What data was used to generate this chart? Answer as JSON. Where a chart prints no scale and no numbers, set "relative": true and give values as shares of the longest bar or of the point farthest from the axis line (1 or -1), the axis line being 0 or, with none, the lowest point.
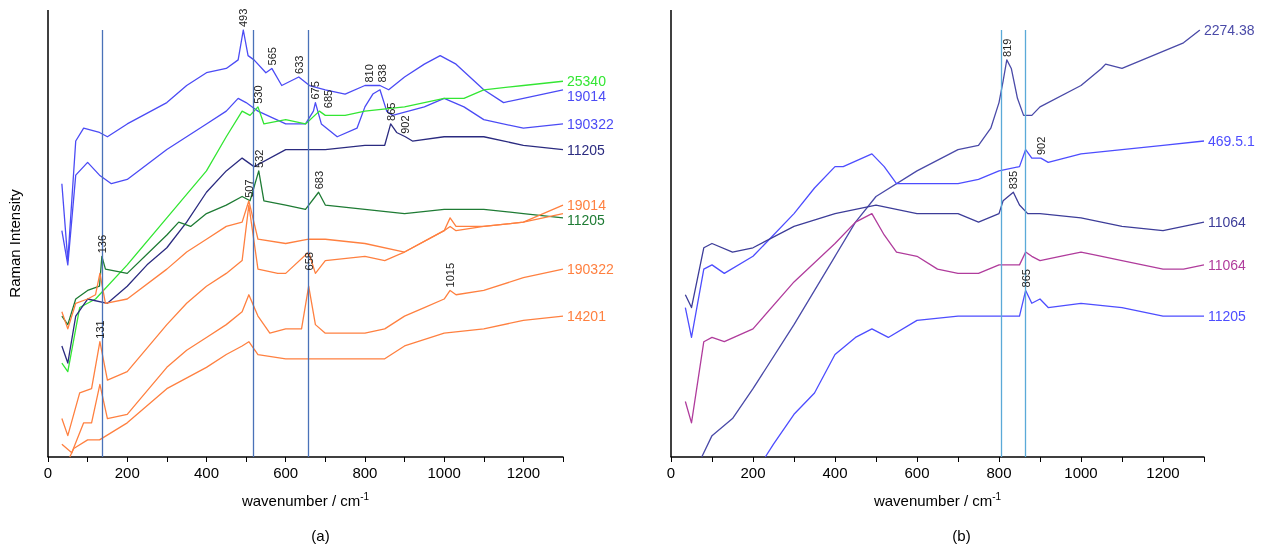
{
  "chart_data": [
    {
      "type": "line",
      "relative": true,
      "title": "(a)",
      "xlabel": "wavenumber / cm$^{-1}$",
      "ylabel": "Raman Intensity",
      "xlim": [
        0,
        1300
      ],
      "xticks": [
        0,
        {
          "value": 100,
          "label": null
        },
        200,
        {
          "value": 300,
          "label": null
        },
        400,
        {
          "value": 500,
          "label": null
        },
        600,
        {
          "value": 700,
          "label": null
        },
        800,
        {
          "value": 900,
          "label": null
        },
        1000,
        {
          "value": 1100,
          "label": null
        },
        1200,
        {
          "value": 1300,
          "label": null
        }
      ],
      "series": [
        {
          "name": "19014",
          "color": "#4b4bf5",
          "x": [
            35,
            50,
            70,
            90,
            130,
            150,
            200,
            300,
            350,
            400,
            450,
            480,
            493,
            505,
            520,
            550,
            565,
            590,
            633,
            660,
            700,
            750,
            800,
            838,
            860,
            900,
            950,
            990,
            1030,
            1100,
            1150,
            1200,
            1250,
            1300
          ],
          "values": [
            0.64,
            0.46,
            0.74,
            0.77,
            0.76,
            0.75,
            0.78,
            0.83,
            0.87,
            0.9,
            0.91,
            0.93,
            1.0,
            0.94,
            0.93,
            0.9,
            0.91,
            0.87,
            0.89,
            0.87,
            0.86,
            0.85,
            0.87,
            0.87,
            0.86,
            0.89,
            0.92,
            0.94,
            0.92,
            0.86,
            0.83,
            0.84,
            0.85,
            0.86
          ]
        },
        {
          "name": "190322",
          "color": "#4b4bf5",
          "x": [
            35,
            50,
            70,
            100,
            130,
            160,
            200,
            300,
            400,
            450,
            480,
            500,
            530,
            600,
            650,
            670,
            675,
            690,
            730,
            780,
            800,
            820,
            838,
            855,
            870,
            950,
            1000,
            1050,
            1100,
            1200,
            1300
          ],
          "values": [
            0.53,
            0.45,
            0.66,
            0.69,
            0.66,
            0.64,
            0.65,
            0.72,
            0.78,
            0.81,
            0.84,
            0.83,
            0.81,
            0.78,
            0.78,
            0.81,
            0.83,
            0.78,
            0.75,
            0.77,
            0.82,
            0.85,
            0.86,
            0.81,
            0.8,
            0.82,
            0.84,
            0.82,
            0.79,
            0.77,
            0.78
          ]
        },
        {
          "name": "25340",
          "color": "#33e633",
          "x": [
            35,
            50,
            80,
            120,
            200,
            300,
            400,
            450,
            490,
            510,
            530,
            545,
            600,
            650,
            685,
            700,
            750,
            800,
            900,
            1000,
            1050,
            1100,
            1200,
            1300
          ],
          "values": [
            0.22,
            0.2,
            0.35,
            0.37,
            0.45,
            0.56,
            0.67,
            0.75,
            0.81,
            0.8,
            0.82,
            0.78,
            0.79,
            0.78,
            0.81,
            0.8,
            0.8,
            0.81,
            0.82,
            0.84,
            0.84,
            0.86,
            0.87,
            0.88
          ]
        },
        {
          "name": "11205",
          "color": "#2b2b80",
          "x": [
            35,
            50,
            70,
            100,
            150,
            200,
            250,
            300,
            350,
            400,
            450,
            490,
            520,
            600,
            700,
            800,
            850,
            865,
            880,
            902,
            920,
            1000,
            1100,
            1200,
            1300
          ],
          "values": [
            0.26,
            0.22,
            0.33,
            0.37,
            0.36,
            0.4,
            0.45,
            0.49,
            0.55,
            0.62,
            0.67,
            0.7,
            0.68,
            0.72,
            0.72,
            0.73,
            0.73,
            0.78,
            0.76,
            0.75,
            0.74,
            0.75,
            0.75,
            0.73,
            0.72
          ]
        },
        {
          "name": "11205",
          "color": "#1e7b34",
          "x": [
            35,
            50,
            70,
            100,
            130,
            136,
            145,
            200,
            300,
            330,
            360,
            400,
            450,
            490,
            510,
            532,
            545,
            600,
            650,
            683,
            700,
            800,
            900,
            1000,
            1100,
            1200,
            1300
          ],
          "values": [
            0.33,
            0.31,
            0.37,
            0.39,
            0.4,
            0.47,
            0.44,
            0.43,
            0.52,
            0.55,
            0.54,
            0.57,
            0.59,
            0.61,
            0.6,
            0.67,
            0.6,
            0.59,
            0.58,
            0.62,
            0.59,
            0.58,
            0.57,
            0.58,
            0.58,
            0.57,
            0.56
          ]
        },
        {
          "name": "19014",
          "color": "#ff8040",
          "x": [
            35,
            50,
            70,
            100,
            120,
            131,
            145,
            200,
            300,
            350,
            400,
            450,
            490,
            507,
            530,
            600,
            658,
            700,
            800,
            900,
            1000,
            1015,
            1030,
            1100,
            1200,
            1300
          ],
          "values": [
            0.34,
            0.3,
            0.36,
            0.37,
            0.38,
            0.43,
            0.36,
            0.37,
            0.44,
            0.48,
            0.51,
            0.54,
            0.55,
            0.6,
            0.51,
            0.5,
            0.51,
            0.51,
            0.5,
            0.48,
            0.53,
            0.56,
            0.54,
            0.54,
            0.55,
            0.59
          ]
        },
        {
          "color": "#ff8040",
          "x": [
            35,
            50,
            80,
            110,
            131,
            150,
            200,
            300,
            350,
            400,
            450,
            490,
            507,
            530,
            580,
            600,
            658,
            675,
            700,
            800,
            850,
            900,
            1000,
            1015,
            1030,
            1100,
            1200,
            1300
          ],
          "values": [
            0.09,
            0.05,
            0.15,
            0.16,
            0.27,
            0.18,
            0.2,
            0.31,
            0.36,
            0.4,
            0.43,
            0.46,
            0.59,
            0.44,
            0.43,
            0.43,
            0.48,
            0.43,
            0.46,
            0.47,
            0.46,
            0.48,
            0.53,
            0.54,
            0.53,
            0.54,
            0.55,
            0.57
          ]
        },
        {
          "name": "190322",
          "color": "#ff8040",
          "x": [
            35,
            60,
            90,
            110,
            131,
            150,
            200,
            300,
            350,
            400,
            450,
            490,
            507,
            530,
            560,
            600,
            640,
            658,
            675,
            700,
            800,
            850,
            900,
            950,
            1000,
            1015,
            1030,
            1100,
            1200,
            1300
          ],
          "values": [
            0.03,
            0.01,
            0.08,
            0.08,
            0.17,
            0.09,
            0.1,
            0.21,
            0.25,
            0.28,
            0.31,
            0.34,
            0.38,
            0.33,
            0.29,
            0.3,
            0.3,
            0.4,
            0.31,
            0.29,
            0.29,
            0.3,
            0.33,
            0.35,
            0.37,
            0.39,
            0.38,
            0.39,
            0.42,
            0.44
          ]
        },
        {
          "name": "14201",
          "color": "#ff8040",
          "x": [
            55,
            65,
            100,
            130,
            200,
            300,
            400,
            450,
            490,
            507,
            530,
            600,
            700,
            800,
            850,
            900,
            1000,
            1100,
            1200,
            1300
          ],
          "values": [
            0.0,
            0.02,
            0.04,
            0.04,
            0.08,
            0.16,
            0.21,
            0.24,
            0.26,
            0.27,
            0.24,
            0.23,
            0.23,
            0.23,
            0.23,
            0.26,
            0.29,
            0.3,
            0.32,
            0.33
          ]
        }
      ],
      "ref_lines": [
        {
          "axis": "x",
          "value": 136,
          "color": "#4a72b8"
        },
        {
          "axis": "x",
          "value": 518,
          "color": "#4a72b8"
        },
        {
          "axis": "x",
          "value": 658,
          "color": "#4a72b8"
        }
      ],
      "annotations": [
        {
          "text": "131",
          "x": 131,
          "y": 0.27
        },
        {
          "text": "136",
          "x": 136,
          "y": 0.47
        },
        {
          "text": "493",
          "x": 493,
          "y": 1.0
        },
        {
          "text": "565",
          "x": 565,
          "y": 0.91
        },
        {
          "text": "633",
          "x": 633,
          "y": 0.89
        },
        {
          "text": "675",
          "x": 675,
          "y": 0.83
        },
        {
          "text": "810",
          "x": 810,
          "y": 0.87
        },
        {
          "text": "838",
          "x": 838,
          "y": 0.87
        },
        {
          "text": "530",
          "x": 530,
          "y": 0.82
        },
        {
          "text": "685",
          "x": 685,
          "y": 0.81
        },
        {
          "text": "532",
          "x": 532,
          "y": 0.67
        },
        {
          "text": "683",
          "x": 683,
          "y": 0.62
        },
        {
          "text": "865",
          "x": 865,
          "y": 0.78
        },
        {
          "text": "902",
          "x": 902,
          "y": 0.75
        },
        {
          "text": "507",
          "x": 507,
          "y": 0.6
        },
        {
          "text": "658",
          "x": 658,
          "y": 0.43
        },
        {
          "text": "1015",
          "x": 1015,
          "y": 0.39
        }
      ]
    },
    {
      "type": "line",
      "relative": true,
      "title": "(b)",
      "xlabel": "wavenumber / cm$^{-1}$",
      "xlim": [
        0,
        1300
      ],
      "xticks": [
        0,
        {
          "value": 100,
          "label": null
        },
        200,
        {
          "value": 300,
          "label": null
        },
        400,
        {
          "value": 500,
          "label": null
        },
        600,
        {
          "value": 700,
          "label": null
        },
        800,
        {
          "value": 900,
          "label": null
        },
        1000,
        {
          "value": 1100,
          "label": null
        },
        1200,
        {
          "value": 1300,
          "label": null
        }
      ],
      "series": [
        {
          "name": "2274.38",
          "color": "#4a4aa8",
          "x": [
            75,
            100,
            150,
            200,
            300,
            400,
            450,
            500,
            600,
            700,
            750,
            780,
            800,
            810,
            819,
            830,
            845,
            860,
            880,
            900,
            1000,
            1050,
            1060,
            1100,
            1200,
            1250,
            1290
          ],
          "values": [
            0.0,
            0.05,
            0.09,
            0.16,
            0.31,
            0.47,
            0.55,
            0.61,
            0.67,
            0.72,
            0.73,
            0.77,
            0.83,
            0.88,
            0.93,
            0.91,
            0.84,
            0.8,
            0.8,
            0.82,
            0.87,
            0.91,
            0.92,
            0.91,
            0.95,
            0.97,
            1.0
          ]
        },
        {
          "name": "469.5.1",
          "color": "#4d4dff",
          "x": [
            35,
            50,
            80,
            100,
            130,
            200,
            300,
            350,
            400,
            420,
            490,
            520,
            550,
            600,
            700,
            750,
            800,
            850,
            865,
            880,
            902,
            920,
            1000,
            1100,
            1200,
            1300
          ],
          "values": [
            0.35,
            0.28,
            0.44,
            0.45,
            0.43,
            0.47,
            0.57,
            0.63,
            0.68,
            0.68,
            0.71,
            0.68,
            0.64,
            0.64,
            0.64,
            0.65,
            0.67,
            0.68,
            0.72,
            0.7,
            0.7,
            0.69,
            0.71,
            0.72,
            0.73,
            0.74
          ]
        },
        {
          "name": "11064",
          "color": "#3d3d99",
          "x": [
            35,
            50,
            80,
            100,
            150,
            200,
            300,
            400,
            500,
            600,
            700,
            750,
            800,
            810,
            835,
            850,
            870,
            900,
            1000,
            1100,
            1200,
            1300
          ],
          "values": [
            0.38,
            0.35,
            0.49,
            0.5,
            0.48,
            0.49,
            0.54,
            0.57,
            0.59,
            0.57,
            0.57,
            0.55,
            0.57,
            0.6,
            0.62,
            0.59,
            0.57,
            0.57,
            0.56,
            0.54,
            0.53,
            0.55
          ]
        },
        {
          "name": "11064",
          "color": "#b03c9c",
          "x": [
            35,
            50,
            80,
            100,
            130,
            200,
            300,
            400,
            450,
            490,
            520,
            550,
            600,
            650,
            700,
            750,
            800,
            850,
            865,
            880,
            900,
            1000,
            1100,
            1200,
            1250,
            1300
          ],
          "values": [
            0.13,
            0.08,
            0.27,
            0.28,
            0.27,
            0.3,
            0.41,
            0.5,
            0.55,
            0.57,
            0.52,
            0.48,
            0.47,
            0.44,
            0.43,
            0.43,
            0.45,
            0.45,
            0.48,
            0.47,
            0.46,
            0.48,
            0.46,
            0.44,
            0.44,
            0.45
          ]
        },
        {
          "name": "11205",
          "color": "#4d4dff",
          "x": [
            230,
            250,
            300,
            350,
            400,
            450,
            490,
            530,
            600,
            700,
            800,
            850,
            865,
            880,
            900,
            920,
            1000,
            1100,
            1200,
            1300
          ],
          "values": [
            0.0,
            0.03,
            0.1,
            0.15,
            0.24,
            0.28,
            0.3,
            0.28,
            0.32,
            0.33,
            0.33,
            0.33,
            0.39,
            0.36,
            0.37,
            0.35,
            0.36,
            0.35,
            0.33,
            0.33
          ]
        }
      ],
      "ref_lines": [
        {
          "axis": "x",
          "value": 806,
          "color": "#5aaad8"
        },
        {
          "axis": "x",
          "value": 863,
          "color": "#5aaad8"
        }
      ],
      "annotations": [
        {
          "text": "819",
          "x": 819,
          "y": 0.93
        },
        {
          "text": "902",
          "x": 902,
          "y": 0.7
        },
        {
          "text": "835",
          "x": 835,
          "y": 0.62
        },
        {
          "text": "865",
          "x": 865,
          "y": 0.39
        }
      ]
    }
  ]
}
